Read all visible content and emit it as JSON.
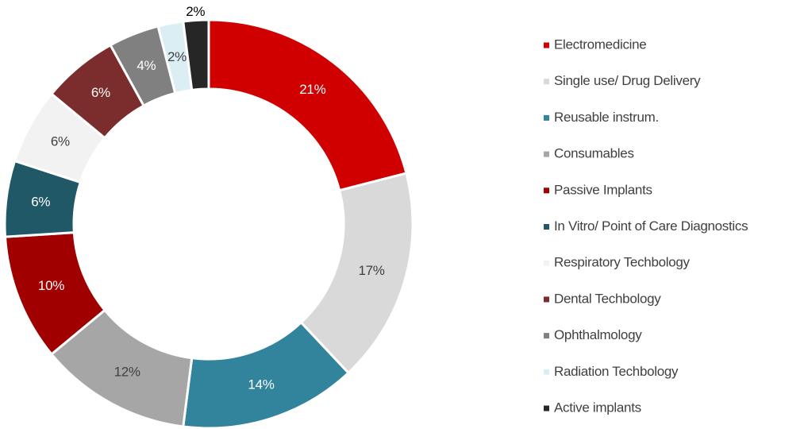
{
  "chart_data": {
    "type": "donut",
    "categories": [
      "Electromedicine",
      "Single use/ Drug Delivery",
      "Reusable instrum.",
      "Consumables",
      "Passive Implants",
      "In Vitro/ Point of Care Diagnostics",
      "Respiratory Techbology",
      "Dental Techbology",
      "Ophthalmology",
      "Radiation Techbology",
      "Active implants"
    ],
    "values": [
      21,
      17,
      14,
      12,
      10,
      6,
      6,
      6,
      4,
      2,
      2
    ],
    "value_labels": [
      "21%",
      "17%",
      "14%",
      "12%",
      "10%",
      "6%",
      "6%",
      "6%",
      "4%",
      "2%",
      "2%"
    ],
    "colors": [
      "#d00000",
      "#d9d9d9",
      "#31849b",
      "#a6a6a6",
      "#a00000",
      "#215868",
      "#f2f2f2",
      "#7b2c2c",
      "#808080",
      "#daeef3",
      "#262626"
    ],
    "legend": "right"
  }
}
